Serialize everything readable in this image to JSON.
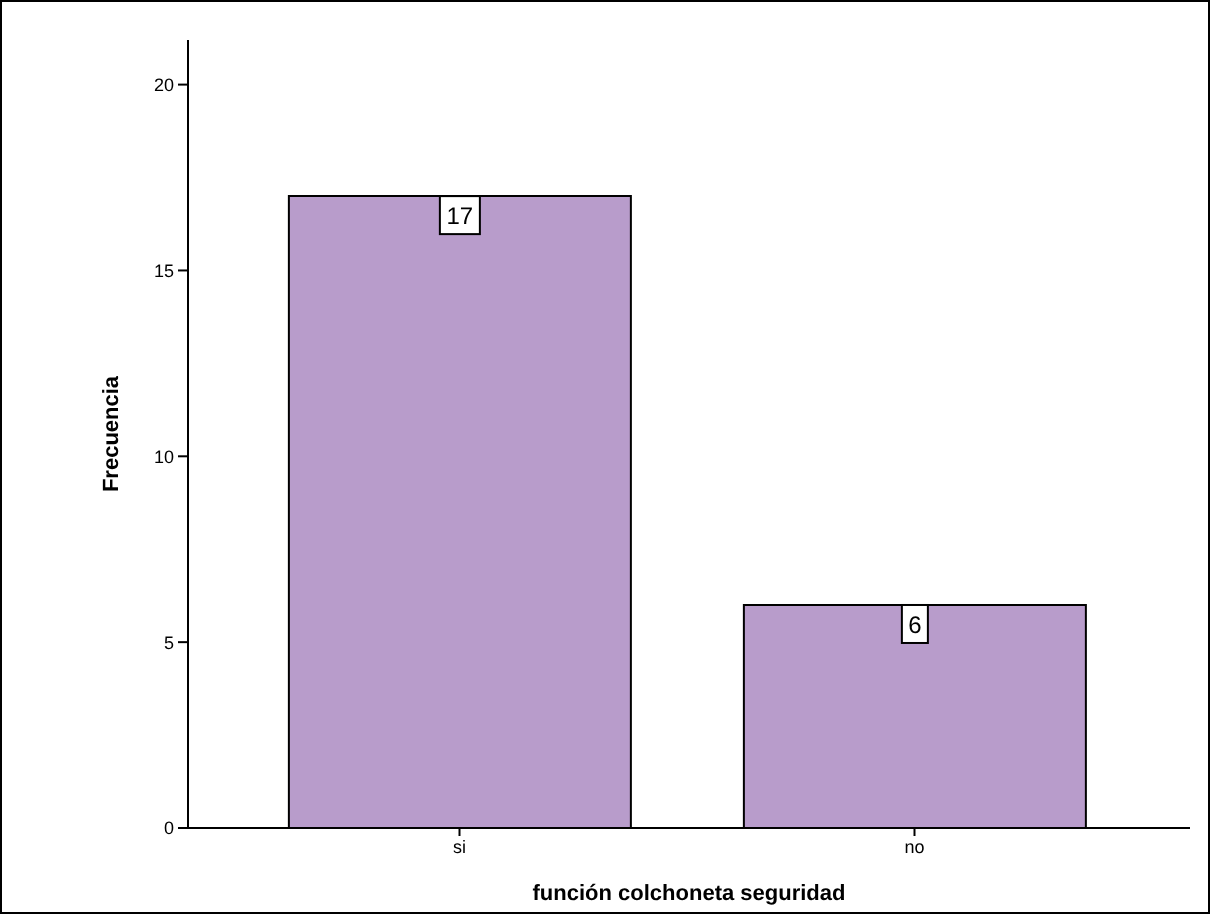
{
  "chart_data": {
    "type": "bar",
    "xlabel": "función colchoneta seguridad",
    "ylabel": "Frecuencia",
    "categories": [
      "si",
      "no"
    ],
    "values": [
      17,
      6
    ],
    "color": "#b89ccb",
    "ylim": [
      0,
      21.2
    ],
    "yticks": [
      0,
      5,
      10,
      15,
      20
    ],
    "grid": false,
    "data_labels": true
  }
}
